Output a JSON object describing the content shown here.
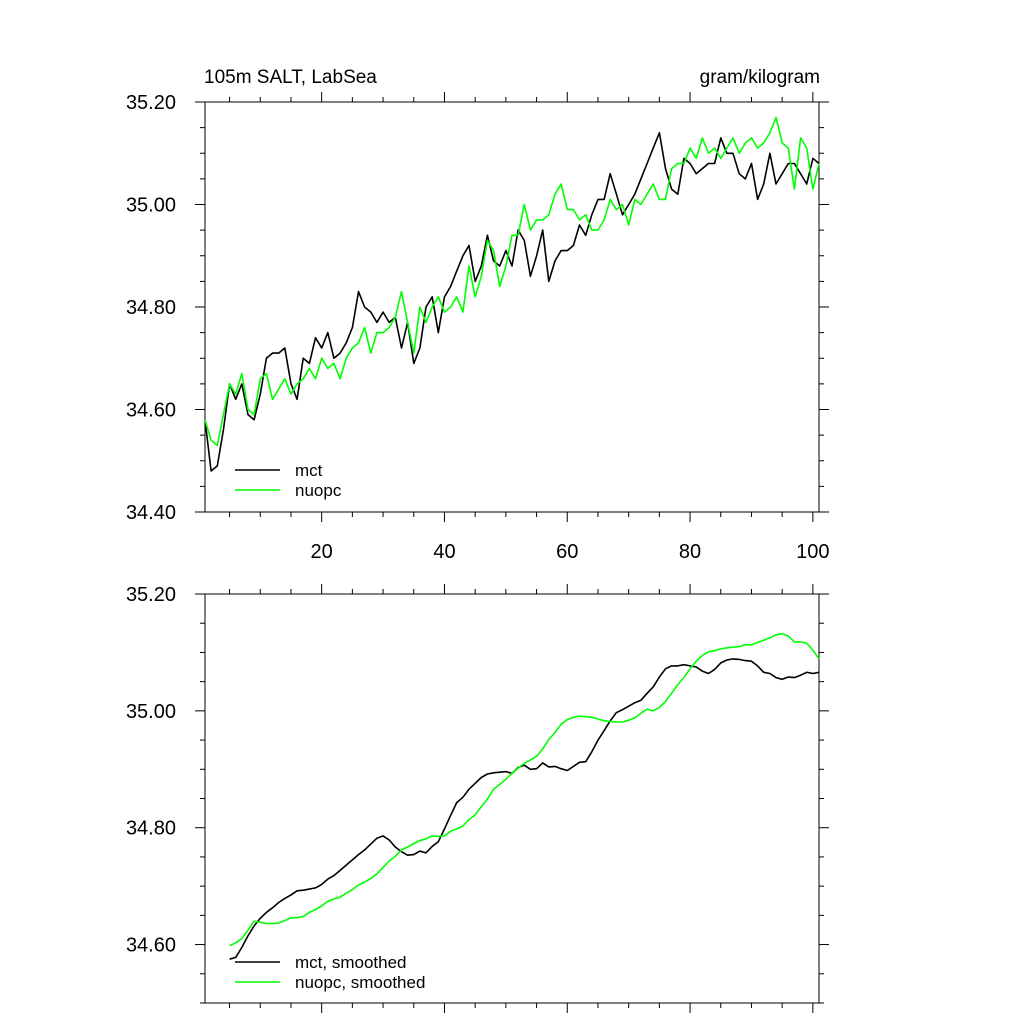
{
  "chart_data": [
    {
      "type": "line",
      "title_left": "105m SALT, LabSea",
      "title_right": "gram/kilogram",
      "xlabel": "",
      "ylabel": "",
      "xlim": [
        1,
        101
      ],
      "ylim": [
        34.4,
        35.2
      ],
      "x_ticks": [
        20,
        40,
        60,
        80,
        100
      ],
      "x_tick_labels": [
        "20",
        "40",
        "60",
        "80",
        "100"
      ],
      "y_ticks": [
        34.4,
        34.6,
        34.8,
        35.0,
        35.2
      ],
      "y_tick_labels": [
        "34.40",
        "34.60",
        "34.80",
        "35.00",
        "35.20"
      ],
      "grid": false,
      "legend_position": "bottom-left",
      "series": [
        {
          "name": "mct",
          "color": "#000000",
          "x_start": 1,
          "values": [
            34.58,
            34.48,
            34.49,
            34.56,
            34.65,
            34.62,
            34.65,
            34.59,
            34.58,
            34.63,
            34.7,
            34.71,
            34.71,
            34.72,
            34.65,
            34.62,
            34.7,
            34.69,
            34.74,
            34.72,
            34.75,
            34.7,
            34.71,
            34.73,
            34.76,
            34.83,
            34.8,
            34.79,
            34.77,
            34.79,
            34.77,
            34.78,
            34.72,
            34.77,
            34.69,
            34.72,
            34.8,
            34.82,
            34.75,
            34.82,
            34.84,
            34.87,
            34.9,
            34.92,
            34.85,
            34.88,
            34.94,
            34.89,
            34.88,
            34.91,
            34.88,
            34.95,
            34.93,
            34.86,
            34.9,
            34.95,
            34.85,
            34.89,
            34.91,
            34.91,
            34.92,
            34.96,
            34.94,
            34.98,
            35.01,
            35.01,
            35.06,
            35.02,
            34.98,
            35.0,
            35.02,
            35.05,
            35.08,
            35.11,
            35.14,
            35.07,
            35.03,
            35.02,
            35.09,
            35.08,
            35.06,
            35.07,
            35.08,
            35.08,
            35.13,
            35.1,
            35.1,
            35.06,
            35.05,
            35.08,
            35.01,
            35.04,
            35.1,
            35.04,
            35.06,
            35.08,
            35.08,
            35.06,
            35.04,
            35.09,
            35.08
          ]
        },
        {
          "name": "nuopc",
          "color": "#00ff00",
          "x_start": 1,
          "values": [
            34.58,
            34.54,
            34.53,
            34.59,
            34.65,
            34.63,
            34.67,
            34.6,
            34.59,
            34.66,
            34.67,
            34.62,
            34.64,
            34.66,
            34.63,
            34.65,
            34.66,
            34.68,
            34.66,
            34.7,
            34.68,
            34.69,
            34.66,
            34.7,
            34.72,
            34.73,
            34.76,
            34.71,
            34.75,
            34.75,
            34.76,
            34.78,
            34.83,
            34.77,
            34.71,
            34.8,
            34.77,
            34.8,
            34.82,
            34.79,
            34.8,
            34.82,
            34.79,
            34.88,
            34.82,
            34.86,
            34.93,
            34.91,
            34.84,
            34.88,
            34.94,
            34.94,
            35.0,
            34.95,
            34.97,
            34.97,
            34.98,
            35.02,
            35.04,
            34.99,
            34.99,
            34.97,
            34.98,
            34.95,
            34.95,
            34.97,
            35.01,
            34.99,
            35.0,
            34.96,
            35.01,
            35.0,
            35.02,
            35.04,
            35.01,
            35.01,
            35.07,
            35.08,
            35.08,
            35.11,
            35.09,
            35.13,
            35.1,
            35.11,
            35.09,
            35.11,
            35.13,
            35.1,
            35.12,
            35.13,
            35.11,
            35.12,
            35.14,
            35.17,
            35.12,
            35.11,
            35.03,
            35.13,
            35.11,
            35.03,
            35.08
          ]
        }
      ]
    },
    {
      "type": "line",
      "xlabel": "",
      "ylabel": "",
      "xlim": [
        1,
        101
      ],
      "ylim": [
        34.5,
        35.2
      ],
      "x_ticks": [
        20,
        40,
        60,
        80,
        100
      ],
      "x_tick_labels": [],
      "y_ticks": [
        34.6,
        34.8,
        35.0,
        35.2
      ],
      "y_tick_labels": [
        "34.60",
        "34.80",
        "35.00",
        "35.20"
      ],
      "grid": false,
      "legend_position": "bottom-left",
      "series": [
        {
          "name": "mct, smoothed",
          "color": "#000000",
          "x_start": 5,
          "values": [
            34.575,
            34.578,
            34.595,
            34.615,
            34.632,
            34.645,
            34.655,
            34.663,
            34.672,
            34.679,
            34.685,
            34.692,
            34.693,
            34.695,
            34.697,
            34.703,
            34.712,
            34.718,
            34.727,
            34.736,
            34.745,
            34.754,
            34.762,
            34.772,
            34.782,
            34.786,
            34.779,
            34.767,
            34.759,
            34.753,
            34.754,
            34.76,
            34.757,
            34.768,
            34.776,
            34.798,
            34.821,
            34.843,
            34.852,
            34.866,
            34.876,
            34.886,
            34.892,
            34.894,
            34.895,
            34.896,
            34.893,
            34.903,
            34.907,
            34.9,
            34.901,
            34.911,
            34.904,
            34.905,
            34.901,
            34.898,
            34.905,
            34.912,
            34.913,
            34.93,
            34.95,
            34.966,
            34.983,
            34.997,
            35.002,
            35.008,
            35.014,
            35.018,
            35.03,
            35.041,
            35.058,
            35.072,
            35.077,
            35.077,
            35.079,
            35.077,
            35.075,
            35.068,
            35.064,
            35.071,
            35.082,
            35.087,
            35.089,
            35.088,
            35.086,
            35.085,
            35.077,
            35.066,
            35.064,
            35.057,
            35.054,
            35.058,
            35.057,
            35.061,
            35.066,
            35.064,
            35.066
          ]
        },
        {
          "name": "nuopc, smoothed",
          "color": "#00ff00",
          "x_start": 5,
          "values": [
            34.598,
            34.603,
            34.61,
            34.625,
            34.64,
            34.638,
            34.636,
            34.636,
            34.637,
            34.641,
            34.646,
            34.646,
            34.648,
            34.655,
            34.66,
            34.666,
            34.674,
            34.678,
            34.681,
            34.688,
            34.694,
            34.702,
            34.707,
            34.713,
            34.721,
            34.732,
            34.743,
            34.751,
            34.762,
            34.767,
            34.773,
            34.778,
            34.781,
            34.786,
            34.785,
            34.786,
            34.794,
            34.798,
            34.803,
            34.814,
            34.822,
            34.836,
            34.849,
            34.866,
            34.874,
            34.883,
            34.893,
            34.902,
            34.91,
            34.916,
            34.922,
            34.935,
            34.951,
            34.963,
            34.977,
            34.985,
            34.989,
            34.991,
            34.99,
            34.989,
            34.986,
            34.983,
            34.982,
            34.981,
            34.981,
            34.984,
            34.988,
            34.996,
            35.003,
            35.0,
            35.006,
            35.016,
            35.03,
            35.045,
            35.057,
            35.072,
            35.085,
            35.095,
            35.101,
            35.103,
            35.106,
            35.108,
            35.109,
            35.11,
            35.113,
            35.113,
            35.117,
            35.121,
            35.125,
            35.13,
            35.132,
            35.128,
            35.118,
            35.118,
            35.116,
            35.104,
            35.089
          ]
        }
      ]
    }
  ]
}
